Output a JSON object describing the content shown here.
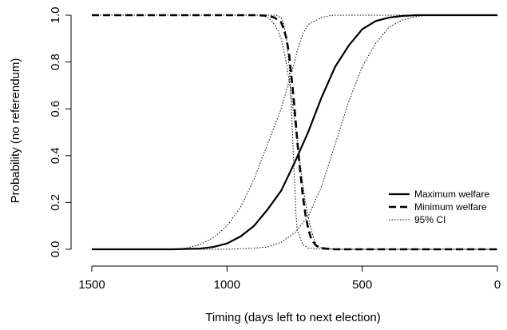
{
  "chart_data": {
    "type": "line",
    "xlabel": "Timing (days left to next election)",
    "ylabel": "Probability (no referendum)",
    "xlim": [
      1500,
      0
    ],
    "ylim": [
      0,
      1
    ],
    "x_reversed": true,
    "xticks": [
      1500,
      1000,
      500,
      0
    ],
    "yticks": [
      0.0,
      0.2,
      0.4,
      0.6,
      0.8,
      1.0
    ],
    "xtick_labels": [
      "1500",
      "1000",
      "500",
      "0"
    ],
    "ytick_labels": [
      "0.0",
      "0.2",
      "0.4",
      "0.6",
      "0.8",
      "1.0"
    ],
    "legend_position": "bottom-right",
    "series": [
      {
        "name": "Maximum welfare",
        "style": "solid",
        "x": [
          1500,
          1200,
          1100,
          1050,
          1000,
          950,
          900,
          850,
          800,
          750,
          700,
          650,
          600,
          550,
          500,
          450,
          400,
          350,
          300,
          250,
          200,
          0
        ],
        "y": [
          0.0,
          0.0,
          0.003,
          0.01,
          0.025,
          0.055,
          0.1,
          0.17,
          0.25,
          0.37,
          0.5,
          0.65,
          0.78,
          0.87,
          0.94,
          0.975,
          0.99,
          0.997,
          1.0,
          1.0,
          1.0,
          1.0
        ]
      },
      {
        "name": "Minimum welfare",
        "style": "dashed",
        "x": [
          1500,
          900,
          850,
          825,
          800,
          790,
          780,
          770,
          760,
          750,
          740,
          730,
          720,
          710,
          700,
          690,
          680,
          670,
          650,
          620,
          600,
          500,
          0
        ],
        "y": [
          1.0,
          1.0,
          0.998,
          0.99,
          0.97,
          0.94,
          0.9,
          0.83,
          0.72,
          0.6,
          0.46,
          0.34,
          0.23,
          0.15,
          0.09,
          0.05,
          0.03,
          0.015,
          0.005,
          0.001,
          0.0,
          0.0,
          0.0
        ]
      },
      {
        "name": "95% CI",
        "style": "dotted",
        "x": [
          1500,
          1200,
          1150,
          1100,
          1050,
          1000,
          950,
          900,
          850,
          800,
          780,
          760,
          750,
          740,
          720,
          700,
          650,
          620,
          600,
          580,
          550,
          0
        ],
        "y": [
          0.0,
          0.0,
          0.005,
          0.02,
          0.05,
          0.1,
          0.18,
          0.3,
          0.45,
          0.6,
          0.68,
          0.76,
          0.8,
          0.85,
          0.92,
          0.96,
          0.99,
          0.998,
          1.0,
          1.0,
          1.0,
          1.0
        ]
      },
      {
        "name": "95% CI",
        "style": "dotted",
        "x": [
          1500,
          1000,
          950,
          900,
          850,
          800,
          750,
          700,
          650,
          600,
          550,
          500,
          450,
          400,
          350,
          300,
          250,
          200,
          0
        ],
        "y": [
          0.0,
          0.0,
          0.002,
          0.005,
          0.01,
          0.03,
          0.07,
          0.14,
          0.27,
          0.45,
          0.63,
          0.78,
          0.88,
          0.95,
          0.98,
          0.995,
          1.0,
          1.0,
          1.0
        ]
      },
      {
        "name": "95% CI",
        "style": "dotted",
        "x": [
          1500,
          870,
          850,
          830,
          810,
          800,
          790,
          780,
          770,
          760,
          750,
          740,
          730,
          720,
          710,
          700,
          690,
          680,
          670,
          660,
          600,
          0
        ],
        "y": [
          1.0,
          1.0,
          0.99,
          0.97,
          0.93,
          0.9,
          0.85,
          0.79,
          0.72,
          0.64,
          0.55,
          0.46,
          0.37,
          0.28,
          0.2,
          0.14,
          0.09,
          0.05,
          0.02,
          0.008,
          0.0,
          0.0
        ]
      },
      {
        "name": "95% CI",
        "style": "dotted",
        "x": [
          1500,
          820,
          800,
          790,
          780,
          770,
          760,
          750,
          745,
          740,
          720,
          700,
          650,
          600,
          0
        ],
        "y": [
          1.0,
          1.0,
          0.99,
          0.96,
          0.9,
          0.78,
          0.55,
          0.28,
          0.15,
          0.08,
          0.02,
          0.005,
          0.0,
          0.0,
          0.0
        ]
      }
    ],
    "legend": [
      {
        "label": "Maximum welfare",
        "style": "solid"
      },
      {
        "label": "Minimum welfare",
        "style": "dashed"
      },
      {
        "label": "95% CI",
        "style": "dotted"
      }
    ]
  }
}
